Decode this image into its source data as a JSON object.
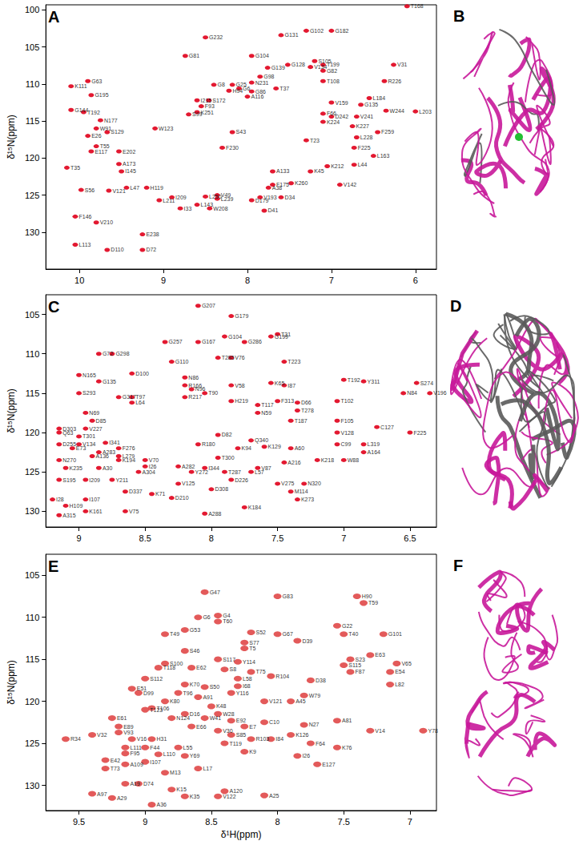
{
  "chart_data": [
    {
      "type": "scatter",
      "title": "A",
      "color": "#e0001b",
      "y_label": "δ¹⁵N(ppm)",
      "xlim": [
        10.4,
        5.75
      ],
      "ylim": [
        135,
        99.3
      ],
      "xticks": [
        10,
        9,
        8,
        7,
        6
      ],
      "yticks": [
        100,
        105,
        110,
        115,
        120,
        125,
        130
      ],
      "labels": [
        "T168",
        "G232",
        "G131",
        "G102",
        "G182",
        "G81",
        "G104",
        "G139",
        "G128",
        "S105",
        "V134",
        "T199",
        "G82",
        "V31",
        "G63",
        "K111",
        "G195",
        "G98",
        "G25",
        "G6",
        "G8",
        "N231",
        "G86",
        "T37",
        "T108",
        "R226",
        "I215",
        "F93",
        "S99",
        "G144",
        "T192",
        "N177",
        "V159",
        "G135",
        "L184",
        "W244",
        "L203",
        "F66",
        "F259",
        "F225",
        "L163",
        "L44",
        "V142",
        "A38",
        "D34",
        "D41",
        "D179",
        "W208",
        "I33",
        "L143",
        "V49",
        "E238",
        "D72",
        "D110",
        "L113",
        "V210",
        "F146",
        "S56",
        "T35",
        "I145",
        "V121",
        "H119",
        "I209",
        "L211",
        "A173",
        "E117",
        "T55",
        "E26",
        "W91",
        "S129",
        "K251",
        "H94",
        "A116",
        "S172",
        "S43",
        "V193",
        "F175",
        "K260",
        "A133",
        "K45",
        "K212",
        "V241",
        "K224",
        "D242",
        "L228",
        "L250",
        "L239",
        "L47",
        "F230",
        "W123",
        "E202",
        "K227",
        "T23"
      ],
      "x": [
        6.1,
        8.5,
        7.6,
        7.3,
        7.0,
        8.74,
        7.95,
        7.76,
        7.52,
        7.2,
        7.25,
        7.1,
        7.1,
        6.26,
        9.9,
        10.1,
        9.86,
        7.85,
        8.18,
        8.1,
        8.4,
        7.95,
        7.95,
        7.66,
        7.1,
        6.37,
        8.6,
        8.55,
        8.7,
        10.1,
        9.95,
        9.75,
        7.0,
        6.65,
        6.55,
        6.35,
        6.0,
        7.1,
        6.45,
        6.73,
        6.5,
        6.73,
        6.9,
        7.75,
        7.6,
        7.8,
        7.95,
        8.45,
        8.8,
        8.6,
        8.36,
        9.25,
        9.25,
        9.67,
        10.05,
        9.8,
        10.05,
        9.98,
        10.15,
        9.5,
        9.65,
        9.2,
        8.9,
        9.05,
        9.53,
        9.86,
        9.8,
        9.9,
        9.8,
        9.67,
        8.6,
        8.22,
        8.0,
        8.46,
        8.18,
        7.85,
        7.7,
        7.48,
        7.7,
        7.25,
        7.05,
        6.7,
        7.1,
        7.0,
        6.7,
        8.5,
        8.36,
        9.44,
        8.3,
        9.1,
        9.53,
        6.75,
        7.3
      ],
      "values": [
        99.5,
        103.7,
        103.4,
        102.8,
        102.8,
        106.2,
        106.2,
        107.8,
        107.4,
        106.9,
        107.7,
        107.4,
        108.2,
        107.4,
        109.6,
        110.3,
        111.5,
        109.0,
        110.1,
        110.6,
        110.1,
        109.8,
        111.0,
        110.6,
        109.6,
        109.6,
        112.2,
        113.0,
        114.1,
        113.5,
        113.8,
        114.9,
        112.5,
        112.8,
        111.9,
        113.6,
        113.7,
        114.0,
        116.5,
        118.6,
        119.7,
        120.9,
        123.6,
        124.0,
        125.3,
        127.1,
        125.7,
        126.8,
        126.8,
        126.3,
        125.0,
        130.3,
        132.4,
        132.4,
        131.7,
        128.7,
        127.9,
        124.3,
        121.3,
        121.8,
        124.4,
        124.0,
        125.3,
        125.7,
        120.8,
        119.1,
        118.4,
        117.0,
        116.0,
        116.5,
        113.8,
        110.9,
        111.7,
        112.2,
        116.5,
        125.3,
        123.6,
        123.4,
        121.8,
        121.8,
        121.1,
        114.4,
        115.1,
        114.4,
        117.2,
        125.2,
        125.5,
        124.0,
        118.6,
        116.0,
        119.1,
        115.7,
        117.6
      ]
    },
    {
      "type": "structure",
      "title": "B"
    },
    {
      "type": "scatter",
      "title": "C",
      "color": "#e0001b",
      "y_label": "δ¹⁵N(ppm)",
      "xlim": [
        9.25,
        6.3
      ],
      "ylim": [
        132,
        102.5
      ],
      "xticks": [
        9,
        8.5,
        8,
        7.5,
        7,
        6.5
      ],
      "yticks": [
        105,
        110,
        115,
        120,
        125,
        130
      ],
      "labels": [
        "G207",
        "G179",
        "G199",
        "T31",
        "G104",
        "G286",
        "G167",
        "G257",
        "G72",
        "G298",
        "G110",
        "V76",
        "T223",
        "T285",
        "N165",
        "G135",
        "D100",
        "N86",
        "R166",
        "N96",
        "V58",
        "K65",
        "I87",
        "T192",
        "Y311",
        "S274",
        "V196",
        "N84",
        "S293",
        "G317",
        "T97",
        "L64",
        "R217",
        "H219",
        "T90",
        "T117",
        "N59",
        "F313",
        "D66",
        "T102",
        "T278",
        "T187",
        "F105",
        "C127",
        "V128",
        "F225",
        "L319",
        "A164",
        "W88",
        "C99",
        "Q63",
        "D303",
        "T301",
        "V227",
        "N69",
        "D85",
        "D255",
        "E73",
        "N270",
        "K235",
        "S195",
        "I209",
        "I28",
        "H109",
        "A315",
        "K161",
        "I107",
        "V75",
        "K273",
        "K184",
        "A288",
        "D210",
        "D308",
        "I344",
        "N320",
        "M114",
        "V275",
        "A216",
        "K218",
        "A60",
        "K129",
        "Q340",
        "V87",
        "L57",
        "T287",
        "D226",
        "T300",
        "R180",
        "K94",
        "D82",
        "Y272",
        "A282",
        "V125",
        "A304",
        "Y211",
        "D337",
        "K71",
        "I26",
        "V70",
        "K194",
        "L279",
        "A283",
        "A136",
        "F276",
        "I341",
        "V134",
        "A30"
      ],
      "x": [
        8.1,
        7.85,
        7.55,
        7.5,
        7.9,
        7.75,
        8.1,
        8.35,
        8.85,
        8.75,
        8.3,
        7.85,
        7.45,
        7.95,
        9.0,
        8.85,
        8.6,
        8.2,
        8.2,
        8.15,
        7.85,
        7.55,
        7.45,
        7.0,
        6.85,
        6.45,
        6.35,
        6.55,
        9.0,
        8.7,
        8.6,
        8.6,
        8.2,
        7.85,
        8.05,
        7.65,
        7.65,
        7.5,
        7.35,
        7.05,
        7.35,
        7.4,
        7.05,
        6.75,
        7.05,
        6.5,
        6.85,
        6.85,
        7.0,
        7.05,
        9.15,
        9.15,
        9.0,
        8.95,
        8.95,
        8.9,
        9.15,
        9.05,
        9.15,
        9.1,
        9.15,
        8.95,
        9.2,
        9.1,
        9.15,
        8.95,
        8.95,
        8.65,
        7.35,
        7.75,
        8.05,
        8.3,
        8.0,
        8.05,
        7.3,
        7.4,
        7.5,
        7.45,
        7.2,
        7.4,
        7.6,
        7.7,
        7.65,
        7.7,
        7.9,
        7.85,
        7.95,
        8.1,
        7.8,
        7.95,
        8.15,
        8.25,
        8.25,
        8.55,
        8.75,
        8.65,
        8.45,
        8.5,
        8.5,
        8.7,
        8.7,
        8.85,
        8.9,
        8.7,
        8.8,
        9.0,
        8.85
      ],
      "values": [
        103.9,
        105.2,
        107.8,
        107.5,
        107.8,
        108.5,
        108.5,
        108.5,
        110.0,
        110.0,
        111.0,
        110.5,
        111.0,
        110.5,
        112.7,
        113.5,
        112.5,
        113.0,
        114.0,
        114.5,
        114.0,
        113.7,
        114.0,
        113.3,
        113.5,
        113.7,
        115.0,
        115.0,
        115.0,
        115.5,
        115.5,
        116.2,
        115.5,
        116.0,
        115.0,
        116.5,
        117.5,
        116.0,
        116.2,
        116.0,
        117.2,
        118.5,
        118.5,
        119.3,
        120.0,
        120.0,
        121.5,
        122.5,
        123.5,
        121.5,
        120.0,
        119.5,
        120.5,
        119.5,
        117.5,
        118.5,
        121.5,
        122.0,
        123.5,
        124.5,
        126.0,
        126.0,
        128.5,
        129.3,
        130.5,
        130.0,
        128.5,
        130.0,
        128.5,
        129.5,
        130.3,
        128.3,
        127.2,
        124.5,
        126.5,
        127.5,
        126.5,
        123.8,
        123.5,
        122.0,
        121.8,
        121.0,
        124.5,
        125.0,
        125.0,
        126.0,
        123.2,
        121.5,
        122.0,
        120.3,
        125.0,
        124.3,
        126.5,
        125.0,
        126.0,
        127.5,
        127.8,
        124.3,
        123.5,
        123.5,
        123.0,
        122.5,
        123.0,
        122.0,
        121.3,
        121.5,
        124.5
      ]
    },
    {
      "type": "structure",
      "title": "D"
    },
    {
      "type": "scatter",
      "title": "E",
      "color": "#e04848",
      "y_label": "δ¹⁵N(ppm)",
      "x_label": "δ¹H(ppm)",
      "xlim": [
        9.75,
        6.8
      ],
      "ylim": [
        133,
        102.5
      ],
      "xticks": [
        9.5,
        9,
        8.5,
        8,
        7.5,
        7
      ],
      "yticks": [
        105,
        110,
        115,
        120,
        125,
        130
      ],
      "labels": [
        "G47",
        "G83",
        "H90",
        "T59",
        "G6",
        "G4",
        "T60",
        "G22",
        "T40",
        "G101",
        "S52",
        "G67",
        "T49",
        "G53",
        "S77",
        "T5",
        "D39",
        "S46",
        "S117",
        "Y114",
        "S23",
        "S115",
        "E63",
        "V65",
        "E54",
        "F87",
        "L82",
        "D38",
        "W79",
        "A45",
        "R104",
        "T75",
        "S8",
        "L58",
        "I68",
        "V121",
        "Y116",
        "E62",
        "S100",
        "T118",
        "S112",
        "D99",
        "E51",
        "K70",
        "T96",
        "K80",
        "A91",
        "S50",
        "K48",
        "W28",
        "W41",
        "E92",
        "E7",
        "C10",
        "N27",
        "A81",
        "V14",
        "Y78",
        "F64",
        "K76",
        "I84",
        "R103",
        "K9",
        "T119",
        "S85",
        "V30",
        "K126",
        "E127",
        "I26",
        "T106",
        "T123",
        "N124",
        "E61",
        "E89",
        "V32",
        "R34",
        "V93",
        "V16",
        "H31",
        "L111",
        "F95",
        "F44",
        "L110",
        "E42",
        "A109",
        "T73",
        "I107",
        "Y69",
        "L55",
        "E66",
        "D16",
        "M13",
        "L17",
        "A19",
        "D74",
        "K15",
        "A97",
        "A29",
        "A36",
        "K35",
        "A120",
        "V122",
        "A25"
      ],
      "x": [
        8.55,
        8.0,
        7.4,
        7.35,
        8.6,
        8.45,
        8.45,
        7.55,
        7.5,
        7.2,
        8.2,
        8.0,
        8.85,
        8.7,
        8.25,
        8.25,
        7.85,
        8.7,
        8.45,
        8.3,
        7.45,
        7.5,
        7.3,
        7.1,
        7.15,
        7.45,
        7.15,
        7.75,
        7.8,
        7.9,
        8.05,
        8.2,
        8.4,
        8.3,
        8.3,
        8.1,
        8.35,
        8.65,
        8.85,
        8.9,
        9.0,
        9.05,
        9.1,
        8.7,
        8.75,
        8.85,
        8.6,
        8.55,
        8.5,
        8.45,
        8.55,
        8.35,
        8.25,
        8.1,
        7.8,
        7.55,
        7.3,
        6.9,
        7.75,
        7.55,
        8.05,
        8.2,
        8.25,
        8.4,
        8.35,
        8.45,
        7.9,
        7.7,
        7.85,
        8.95,
        9.0,
        8.8,
        9.25,
        9.2,
        9.4,
        9.6,
        9.2,
        9.1,
        8.95,
        9.15,
        9.15,
        9.0,
        8.9,
        9.3,
        9.15,
        9.3,
        9.0,
        8.7,
        8.75,
        8.65,
        8.7,
        8.85,
        8.6,
        9.15,
        9.05,
        8.8,
        9.4,
        9.25,
        8.95,
        8.7,
        8.4,
        8.45,
        8.1
      ],
      "values": [
        107.0,
        107.5,
        107.5,
        108.3,
        110.0,
        109.8,
        110.5,
        111.0,
        112.0,
        112.0,
        111.8,
        112.0,
        112.0,
        111.5,
        113.0,
        113.7,
        112.8,
        114.0,
        115.0,
        115.3,
        115.0,
        115.7,
        114.5,
        115.5,
        116.5,
        116.5,
        118.0,
        117.5,
        119.3,
        120.0,
        117.0,
        116.5,
        116.2,
        117.3,
        118.2,
        120.0,
        119.0,
        116.0,
        115.5,
        116.0,
        117.3,
        119.0,
        118.5,
        118.0,
        119.0,
        120.0,
        119.5,
        118.3,
        120.6,
        121.5,
        122.0,
        122.3,
        123.0,
        122.5,
        122.8,
        122.3,
        123.5,
        123.5,
        125.0,
        125.5,
        124.5,
        124.5,
        126.0,
        125.0,
        124.0,
        123.5,
        124.0,
        127.5,
        126.5,
        120.8,
        121.0,
        122.0,
        122.0,
        123.0,
        124.0,
        124.5,
        123.7,
        124.5,
        124.5,
        125.5,
        126.2,
        125.5,
        126.3,
        127.0,
        127.5,
        128.0,
        127.2,
        126.5,
        125.5,
        123.0,
        121.5,
        128.5,
        128.0,
        129.8,
        129.8,
        130.5,
        131.0,
        131.5,
        132.3,
        131.3,
        130.7,
        131.3,
        131.2
      ]
    },
    {
      "type": "structure",
      "title": "F"
    }
  ]
}
